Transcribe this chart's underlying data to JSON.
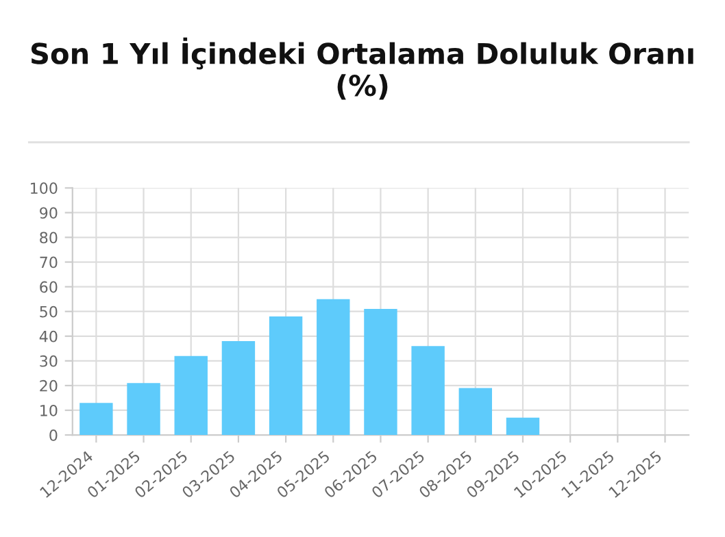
{
  "chart_data": {
    "type": "bar",
    "title": "Son 1 Yıl İçindeki Ortalama Doluluk Oranı (%)",
    "categories": [
      "12-2024",
      "01-2025",
      "02-2025",
      "03-2025",
      "04-2025",
      "05-2025",
      "06-2025",
      "07-2025",
      "08-2025",
      "09-2025",
      "10-2025",
      "11-2025",
      "12-2025"
    ],
    "values": [
      13,
      21,
      32,
      38,
      48,
      55,
      51,
      36,
      19,
      7,
      0,
      0,
      0
    ],
    "color": "#5ecbfb",
    "ylim": [
      0,
      100
    ],
    "yticks": [
      0,
      10,
      20,
      30,
      40,
      50,
      60,
      70,
      80,
      90,
      100
    ],
    "grid": true
  }
}
